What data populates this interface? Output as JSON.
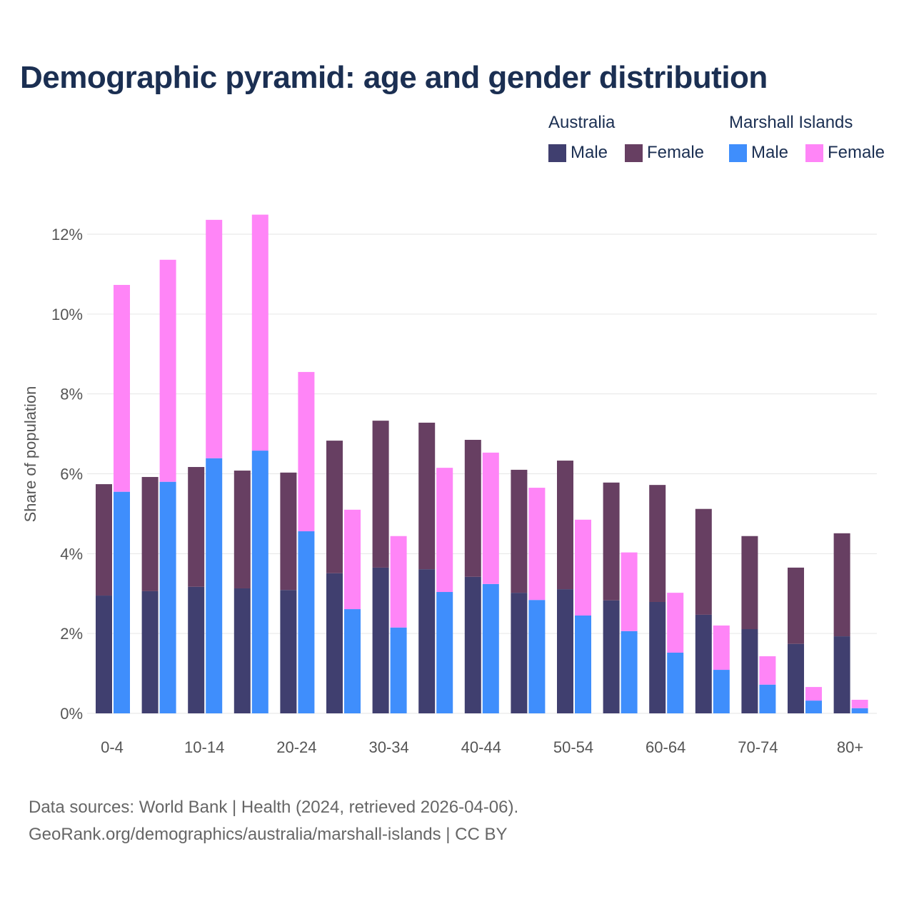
{
  "chart_data": {
    "type": "bar",
    "title": "Demographic pyramid: age and gender distribution",
    "ylabel": "Share of population",
    "xlabel": "",
    "ylim": [
      0,
      12.5
    ],
    "yticks": [
      "0%",
      "2%",
      "4%",
      "6%",
      "8%",
      "10%",
      "12%"
    ],
    "ytick_values": [
      0,
      2,
      4,
      6,
      8,
      10,
      12
    ],
    "stacked": true,
    "categories": [
      "0-4",
      "5-9",
      "10-14",
      "15-19",
      "20-24",
      "25-29",
      "30-34",
      "35-39",
      "40-44",
      "45-49",
      "50-54",
      "55-59",
      "60-64",
      "65-69",
      "70-74",
      "75-79",
      "80+"
    ],
    "xtick_labels": [
      "0-4",
      "",
      "10-14",
      "",
      "20-24",
      "",
      "30-34",
      "",
      "40-44",
      "",
      "50-54",
      "",
      "60-64",
      "",
      "70-74",
      "",
      "80+"
    ],
    "legend_groups": [
      "Australia",
      "Marshall Islands"
    ],
    "series": [
      {
        "group": "Australia",
        "name": "Male",
        "color": "#403f6f",
        "values": [
          2.95,
          3.06,
          3.17,
          3.13,
          3.09,
          3.51,
          3.65,
          3.61,
          3.42,
          3.02,
          3.11,
          2.83,
          2.79,
          2.47,
          2.11,
          1.74,
          1.93
        ]
      },
      {
        "group": "Australia",
        "name": "Female",
        "color": "#673f62",
        "values": [
          2.79,
          2.86,
          3.0,
          2.95,
          2.94,
          3.32,
          3.68,
          3.67,
          3.43,
          3.08,
          3.22,
          2.95,
          2.93,
          2.65,
          2.33,
          1.91,
          2.58
        ]
      },
      {
        "group": "Marshall Islands",
        "name": "Male",
        "color": "#3f8efc",
        "values": [
          5.55,
          5.8,
          6.39,
          6.58,
          4.56,
          2.61,
          2.15,
          3.04,
          3.24,
          2.84,
          2.45,
          2.06,
          1.52,
          1.09,
          0.72,
          0.32,
          0.13
        ]
      },
      {
        "group": "Marshall Islands",
        "name": "Female",
        "color": "#ff85f7",
        "values": [
          5.18,
          5.56,
          5.97,
          5.91,
          3.99,
          2.49,
          2.29,
          3.11,
          3.29,
          2.81,
          2.4,
          1.97,
          1.5,
          1.11,
          0.71,
          0.34,
          0.21
        ]
      }
    ],
    "grid": true,
    "legend_position": "top-right"
  },
  "footer": {
    "line1": "Data sources: World Bank | Health (2024, retrieved 2026-04-06).",
    "line2": "GeoRank.org/demographics/australia/marshall-islands | CC BY"
  }
}
